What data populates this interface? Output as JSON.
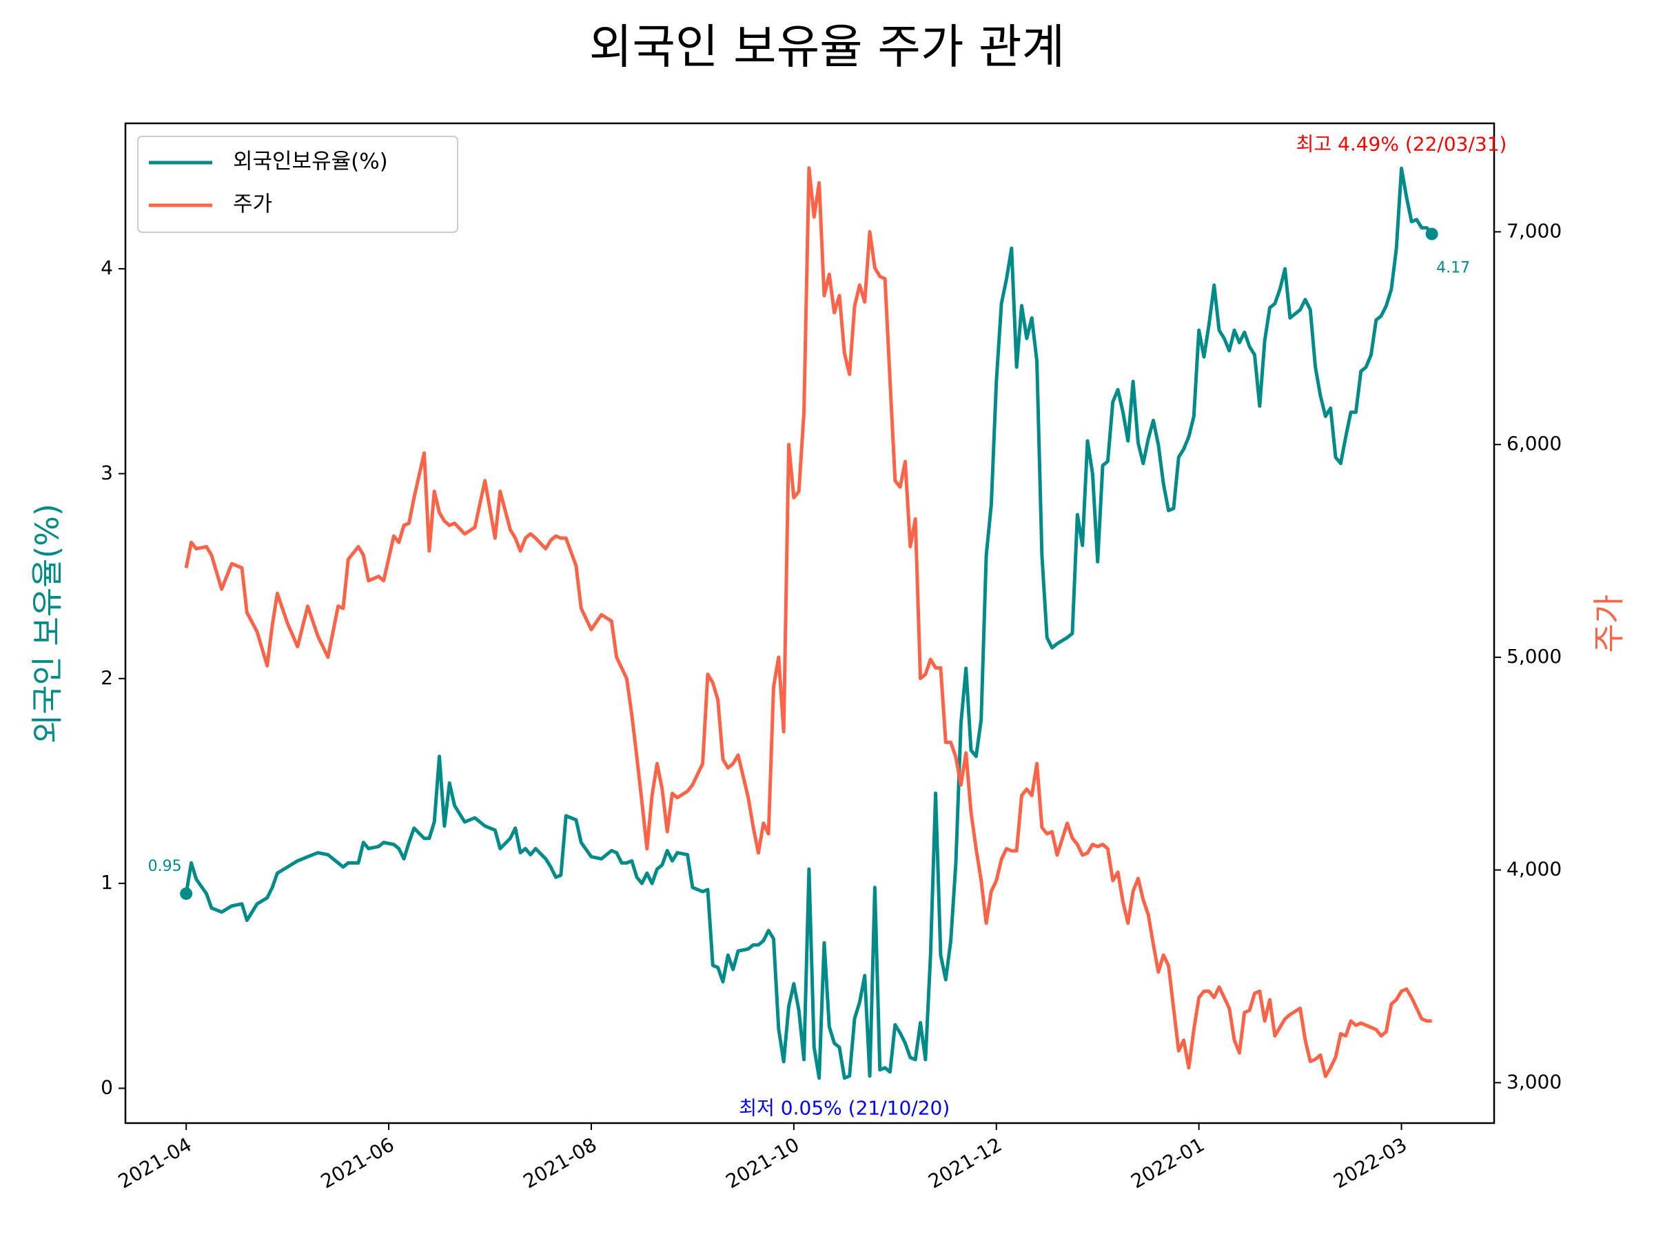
{
  "chart_data": {
    "type": "line",
    "title": "외국인 보유율 주가 관계",
    "y_label": "외국인 보유율(%)",
    "y2_label": "주가",
    "legend": "upper left",
    "x": [
      0,
      1,
      2,
      4,
      5,
      7,
      9,
      11,
      12,
      14,
      16,
      17,
      18,
      20,
      22,
      24,
      26,
      28,
      30,
      31,
      32,
      34,
      35,
      36,
      38,
      39,
      41,
      42,
      43,
      44,
      45,
      47,
      48,
      49,
      50,
      51,
      52,
      53,
      55,
      57,
      59,
      61,
      62,
      64,
      65,
      66,
      67,
      68,
      69,
      71,
      72,
      73,
      74,
      75,
      77,
      78,
      80,
      82,
      84,
      85,
      86,
      87,
      88,
      89,
      90,
      91,
      92,
      93,
      94,
      95,
      96,
      97,
      99,
      100,
      102,
      103,
      104,
      105,
      106,
      107,
      108,
      109,
      111,
      112,
      113,
      114,
      115,
      116,
      117,
      118,
      119,
      120,
      121,
      122,
      123,
      124,
      125,
      126,
      127,
      128,
      129,
      130,
      131,
      132,
      133,
      134,
      135,
      136,
      137,
      138,
      139,
      140,
      141,
      142,
      143,
      144,
      145,
      146,
      147,
      148,
      149,
      150,
      151,
      152,
      153,
      154,
      155,
      156,
      157,
      158,
      159,
      160,
      161,
      162,
      163,
      164,
      165,
      166,
      167,
      168,
      169,
      170,
      171,
      172,
      174,
      175,
      176,
      177,
      178,
      179,
      180,
      181,
      182,
      183,
      184,
      185,
      186,
      187,
      188,
      189,
      190,
      191,
      192,
      193,
      194,
      195,
      196,
      197,
      198,
      199,
      200,
      201,
      202,
      203,
      204,
      205,
      206,
      207,
      208,
      209,
      210,
      211,
      212,
      213,
      214,
      215,
      216,
      217,
      218,
      220,
      221,
      222,
      223,
      224,
      225,
      226,
      227,
      228,
      229,
      230,
      231,
      232,
      233,
      234,
      235,
      236,
      237,
      238,
      239,
      240,
      241,
      242,
      243,
      244,
      245,
      246
    ],
    "series": [
      {
        "name": "외국인보유율(%)",
        "color": "#008b8b",
        "axis": "y",
        "values": [
          0.95,
          1.1,
          1.02,
          0.95,
          0.88,
          0.86,
          0.89,
          0.9,
          0.82,
          0.9,
          0.93,
          0.98,
          1.05,
          1.08,
          1.11,
          1.13,
          1.15,
          1.14,
          1.1,
          1.08,
          1.1,
          1.1,
          1.2,
          1.17,
          1.18,
          1.2,
          1.19,
          1.17,
          1.12,
          1.2,
          1.27,
          1.22,
          1.22,
          1.3,
          1.62,
          1.28,
          1.49,
          1.38,
          1.3,
          1.32,
          1.28,
          1.26,
          1.17,
          1.22,
          1.27,
          1.15,
          1.17,
          1.14,
          1.17,
          1.12,
          1.08,
          1.03,
          1.04,
          1.33,
          1.31,
          1.2,
          1.13,
          1.12,
          1.16,
          1.15,
          1.1,
          1.1,
          1.11,
          1.03,
          1.0,
          1.05,
          1.0,
          1.07,
          1.09,
          1.16,
          1.11,
          1.15,
          1.14,
          0.98,
          0.96,
          0.97,
          0.6,
          0.59,
          0.52,
          0.65,
          0.58,
          0.67,
          0.68,
          0.7,
          0.7,
          0.72,
          0.77,
          0.73,
          0.29,
          0.13,
          0.4,
          0.51,
          0.38,
          0.14,
          1.07,
          0.2,
          0.05,
          0.71,
          0.3,
          0.22,
          0.2,
          0.05,
          0.06,
          0.34,
          0.42,
          0.55,
          0.06,
          0.98,
          0.09,
          0.1,
          0.08,
          0.31,
          0.27,
          0.22,
          0.15,
          0.14,
          0.32,
          0.14,
          0.65,
          1.44,
          0.65,
          0.53,
          0.72,
          1.1,
          1.78,
          2.05,
          1.65,
          1.62,
          1.8,
          2.6,
          2.85,
          3.45,
          3.83,
          3.95,
          4.1,
          3.52,
          3.82,
          3.66,
          3.76,
          3.55,
          2.6,
          2.2,
          2.15,
          2.17,
          2.2,
          2.22,
          2.8,
          2.65,
          3.16,
          3.0,
          2.57,
          3.04,
          3.06,
          3.35,
          3.41,
          3.3,
          3.16,
          3.45,
          3.15,
          3.05,
          3.17,
          3.26,
          3.14,
          2.95,
          2.82,
          2.83,
          3.08,
          3.12,
          3.18,
          3.28,
          3.7,
          3.57,
          3.73,
          3.92,
          3.7,
          3.66,
          3.6,
          3.7,
          3.64,
          3.69,
          3.62,
          3.58,
          3.33,
          3.65,
          3.81,
          3.83,
          3.9,
          4.0,
          3.76,
          3.8,
          3.85,
          3.8,
          3.52,
          3.38,
          3.28,
          3.32,
          3.08,
          3.05,
          3.18,
          3.3,
          3.3,
          3.5,
          3.52,
          3.58,
          3.75,
          3.77,
          3.82,
          3.9,
          4.1,
          4.49,
          4.35,
          4.23,
          4.24,
          4.2,
          4.2,
          4.17
        ]
      },
      {
        "name": "주가",
        "color": "#ff6347",
        "axis": "y2",
        "values": [
          5420,
          5540,
          5510,
          5520,
          5480,
          5320,
          5440,
          5420,
          5210,
          5120,
          4960,
          5150,
          5300,
          5160,
          5050,
          5240,
          5100,
          5000,
          5240,
          5230,
          5460,
          5520,
          5480,
          5360,
          5380,
          5360,
          5570,
          5540,
          5620,
          5630,
          5750,
          5960,
          5500,
          5780,
          5680,
          5640,
          5620,
          5630,
          5580,
          5610,
          5830,
          5560,
          5780,
          5600,
          5560,
          5500,
          5560,
          5580,
          5560,
          5510,
          5550,
          5570,
          5560,
          5560,
          5430,
          5230,
          5130,
          5200,
          5170,
          5000,
          4950,
          4900,
          4730,
          4530,
          4320,
          4100,
          4350,
          4500,
          4380,
          4180,
          4360,
          4340,
          4370,
          4400,
          4500,
          4920,
          4880,
          4800,
          4520,
          4480,
          4500,
          4540,
          4340,
          4200,
          4080,
          4220,
          4170,
          4860,
          5000,
          4650,
          6000,
          5750,
          5780,
          6150,
          7300,
          7070,
          7230,
          6700,
          6800,
          6620,
          6700,
          6430,
          6330,
          6650,
          6750,
          6670,
          7000,
          6830,
          6790,
          6780,
          6300,
          5830,
          5800,
          5920,
          5520,
          5650,
          4900,
          4920,
          4990,
          4950,
          4950,
          4600,
          4600,
          4530,
          4400,
          4550,
          4270,
          4100,
          3950,
          3750,
          3900,
          3950,
          4050,
          4100,
          4090,
          4090,
          4350,
          4380,
          4350,
          4500,
          4200,
          4170,
          4180,
          4070,
          4220,
          4150,
          4120,
          4070,
          4080,
          4120,
          4110,
          4120,
          4100,
          3950,
          3990,
          3850,
          3750,
          3900,
          3960,
          3860,
          3790,
          3650,
          3520,
          3600,
          3550,
          3350,
          3150,
          3200,
          3070,
          3250,
          3400,
          3430,
          3430,
          3400,
          3450,
          3400,
          3350,
          3200,
          3140,
          3330,
          3340,
          3420,
          3430,
          3290,
          3390,
          3220,
          3260,
          3300,
          3320,
          3350,
          3200,
          3100,
          3110,
          3130,
          3030,
          3070,
          3120,
          3230,
          3220,
          3290,
          3270,
          3280,
          3270,
          3260,
          3250,
          3220,
          3240,
          3370,
          3390,
          3430,
          3440,
          3400,
          3350,
          3300,
          3290,
          3290
        ]
      }
    ],
    "xlim": [
      -12,
      258.3
    ],
    "xticks": [
      {
        "value": 0,
        "label": "2021-04"
      },
      {
        "value": 40,
        "label": "2021-06"
      },
      {
        "value": 80,
        "label": "2021-08"
      },
      {
        "value": 120,
        "label": "2021-10"
      },
      {
        "value": 160,
        "label": "2021-12"
      },
      {
        "value": 200,
        "label": "2022-01"
      },
      {
        "value": 240,
        "label": "2022-03"
      }
    ],
    "ylim": [
      -0.17,
      4.71
    ],
    "yticks": [
      0,
      1,
      2,
      3,
      4
    ],
    "y2lim": [
      2810,
      7510
    ],
    "y2ticks": [
      {
        "value": 3000,
        "label": "3,000"
      },
      {
        "value": 4000,
        "label": "4,000"
      },
      {
        "value": 5000,
        "label": "5,000"
      },
      {
        "value": 6000,
        "label": "6,000"
      },
      {
        "value": 7000,
        "label": "7,000"
      }
    ],
    "annotations": [
      {
        "text": "최고 4.49% (22/03/31)",
        "x": 240,
        "y": 4.49,
        "color": "#ff0000"
      },
      {
        "text": "최저 0.05% (21/10/20)",
        "x": 130,
        "y": 0.05,
        "color": "#0000ff"
      },
      {
        "text": "0.95",
        "x": 0,
        "y": 0.95,
        "color": "#008b8b"
      },
      {
        "text": "4.17",
        "x": 246,
        "y": 4.17,
        "color": "#008b8b"
      }
    ]
  }
}
